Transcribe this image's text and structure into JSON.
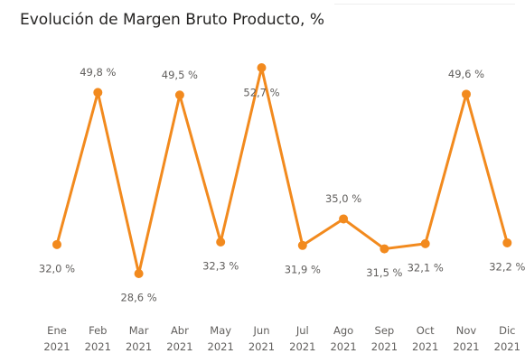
{
  "chart_data": {
    "type": "line",
    "title": "Evolución de Margen Bruto Producto, %",
    "categories": [
      "Ene 2021",
      "Feb 2021",
      "Mar 2021",
      "Abr 2021",
      "May 2021",
      "Jun 2021",
      "Jul 2021",
      "Ago 2021",
      "Sep 2021",
      "Oct 2021",
      "Nov 2021",
      "Dic 2021"
    ],
    "series": [
      {
        "name": "Margen Bruto Producto, %",
        "color": "#f28a1e",
        "values": [
          32.0,
          49.8,
          28.6,
          49.5,
          32.3,
          52.7,
          31.9,
          35.0,
          31.5,
          32.1,
          49.6,
          32.2
        ],
        "value_labels": [
          "32,0 %",
          "49,8 %",
          "28,6 %",
          "49,5 %",
          "32,3 %",
          "52,7 %",
          "31,9 %",
          "35,0 %",
          "31,5 %",
          "32,1 %",
          "49,6 %",
          "32,2 %"
        ]
      }
    ]
  }
}
